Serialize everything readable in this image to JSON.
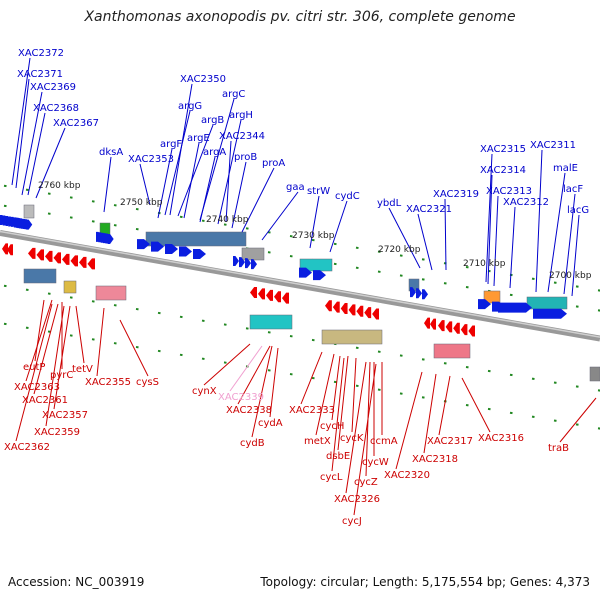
{
  "title": "Xanthomonas axonopodis pv. citri str. 306, complete genome",
  "footer": {
    "accession": "Accession: NC_003919",
    "topology": "Topology: circular; Length: 5,175,554 bp; Genes: 4,373"
  },
  "colors": {
    "plus_gene": "#0a1ee0",
    "minus_gene": "#ee0000",
    "plus_label": "#0000cc",
    "minus_label": "#cc0000",
    "highlight_label": "#f0a0d0",
    "backbone": "#888888",
    "tick_mark": "#228822"
  },
  "scale_labels": [
    "2760 kbp",
    "2750 kbp",
    "2740 kbp",
    "2730 kbp",
    "2720 kbp",
    "2710 kbp",
    "2700 kbp"
  ],
  "plus_strand_labels": [
    "XAC2372",
    "XAC2371",
    "XAC2369",
    "XAC2368",
    "XAC2367",
    "dksA",
    "XAC2353",
    "argF",
    "argG",
    "XAC2350",
    "argB",
    "argE",
    "argC",
    "argA",
    "argH",
    "XAC2344",
    "proB",
    "proA",
    "gaa",
    "strW",
    "cydC",
    "ybdL",
    "XAC2321",
    "XAC2319",
    "XAC2315",
    "XAC2314",
    "XAC2313",
    "XAC2312",
    "XAC2311",
    "malE",
    "lacF",
    "lacG"
  ],
  "minus_strand_labels": [
    "eutP",
    "XAC2363",
    "pyrC",
    "XAC2361",
    "tetV",
    "XAC2357",
    "XAC2359",
    "XAC2362",
    "XAC2355",
    "cysS",
    "cynX",
    "XAC2339",
    "XAC2338",
    "cydA",
    "cydB",
    "XAC2333",
    "cycH",
    "metX",
    "cycK",
    "dsbE",
    "ccmA",
    "cycW",
    "cycL",
    "cycZ",
    "XAC2326",
    "cycJ",
    "XAC2320",
    "XAC2318",
    "XAC2317",
    "XAC2316",
    "traB"
  ]
}
